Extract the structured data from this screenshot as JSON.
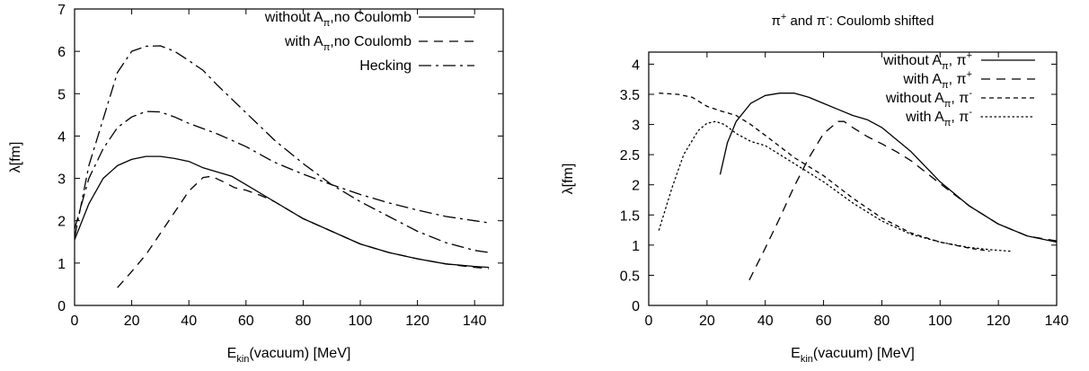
{
  "chart_data": [
    {
      "type": "line",
      "title": "",
      "xlabel": "E_kin(vacuum) [MeV]",
      "xlabel_parts": {
        "base": "E",
        "sub": "kin",
        "rest": "(vacuum) [MeV]"
      },
      "ylabel": "λ[fm]",
      "xlim": [
        0,
        150
      ],
      "ylim": [
        0,
        7
      ],
      "xticks": [
        0,
        20,
        40,
        60,
        80,
        100,
        120,
        140
      ],
      "yticks": [
        0,
        1,
        2,
        3,
        4,
        5,
        6,
        7
      ],
      "grid": false,
      "legend_position": "top-right",
      "series": [
        {
          "name": "without A_π,no Coulomb",
          "legend": {
            "pre": "without A",
            "sub": "π",
            "sup": "",
            "post": ",no Coulomb"
          },
          "style": "solid",
          "points": [
            [
              0,
              1.55
            ],
            [
              5,
              2.4
            ],
            [
              10,
              3.0
            ],
            [
              15,
              3.3
            ],
            [
              20,
              3.45
            ],
            [
              25,
              3.52
            ],
            [
              30,
              3.52
            ],
            [
              35,
              3.47
            ],
            [
              40,
              3.4
            ],
            [
              45,
              3.25
            ],
            [
              50,
              3.15
            ],
            [
              55,
              3.05
            ],
            [
              60,
              2.85
            ],
            [
              70,
              2.45
            ],
            [
              80,
              2.05
            ],
            [
              90,
              1.75
            ],
            [
              100,
              1.45
            ],
            [
              110,
              1.25
            ],
            [
              120,
              1.1
            ],
            [
              130,
              0.98
            ],
            [
              140,
              0.92
            ],
            [
              145,
              0.9
            ]
          ]
        },
        {
          "name": "with A_π,no Coulomb",
          "legend": {
            "pre": "with A",
            "sub": "π",
            "sup": "",
            "post": ",no Coulomb"
          },
          "style": "dashed",
          "points": [
            [
              15,
              0.42
            ],
            [
              20,
              0.8
            ],
            [
              25,
              1.2
            ],
            [
              30,
              1.7
            ],
            [
              35,
              2.2
            ],
            [
              40,
              2.7
            ],
            [
              45,
              3.02
            ],
            [
              48,
              3.05
            ],
            [
              52,
              2.92
            ],
            [
              56,
              2.78
            ],
            [
              60,
              2.72
            ],
            [
              65,
              2.6
            ],
            [
              70,
              2.45
            ],
            [
              80,
              2.05
            ],
            [
              90,
              1.75
            ],
            [
              100,
              1.45
            ],
            [
              110,
              1.25
            ],
            [
              120,
              1.1
            ],
            [
              130,
              0.98
            ],
            [
              140,
              0.9
            ],
            [
              145,
              0.87
            ]
          ]
        },
        {
          "name": "Hecking",
          "legend": {
            "pre": "Hecking",
            "sub": "",
            "sup": "",
            "post": ""
          },
          "style": "dashdot",
          "points": [
            [
              0,
              1.6
            ],
            [
              5,
              3.3
            ],
            [
              10,
              4.4
            ],
            [
              15,
              5.5
            ],
            [
              20,
              6.0
            ],
            [
              25,
              6.12
            ],
            [
              30,
              6.13
            ],
            [
              35,
              6.0
            ],
            [
              40,
              5.78
            ],
            [
              45,
              5.55
            ],
            [
              50,
              5.2
            ],
            [
              60,
              4.55
            ],
            [
              70,
              3.9
            ],
            [
              80,
              3.35
            ],
            [
              90,
              2.85
            ],
            [
              100,
              2.45
            ],
            [
              110,
              2.1
            ],
            [
              120,
              1.75
            ],
            [
              130,
              1.48
            ],
            [
              140,
              1.3
            ],
            [
              145,
              1.25
            ]
          ]
        },
        {
          "name": "",
          "legend": null,
          "style": "dashdot",
          "points": [
            [
              0,
              1.8
            ],
            [
              5,
              3.0
            ],
            [
              10,
              3.7
            ],
            [
              15,
              4.2
            ],
            [
              20,
              4.45
            ],
            [
              25,
              4.58
            ],
            [
              30,
              4.57
            ],
            [
              35,
              4.45
            ],
            [
              40,
              4.3
            ],
            [
              50,
              4.05
            ],
            [
              60,
              3.75
            ],
            [
              70,
              3.38
            ],
            [
              80,
              3.1
            ],
            [
              90,
              2.85
            ],
            [
              100,
              2.62
            ],
            [
              110,
              2.42
            ],
            [
              120,
              2.25
            ],
            [
              130,
              2.1
            ],
            [
              140,
              2.0
            ],
            [
              145,
              1.95
            ]
          ]
        }
      ]
    },
    {
      "type": "line",
      "title": "π+ and π-: Coulomb shifted",
      "title_parts": {
        "a": "π",
        "a_sup": "+",
        "mid": " and ",
        "b": "π",
        "b_sup": "-",
        "rest": ": Coulomb shifted"
      },
      "xlabel": "E_kin(vacuum) [MeV]",
      "xlabel_parts": {
        "base": "E",
        "sub": "kin",
        "rest": "(vacuum) [MeV]"
      },
      "ylabel": "λ[fm]",
      "xlim": [
        0,
        140
      ],
      "ylim": [
        0,
        4.2
      ],
      "xticks": [
        0,
        20,
        40,
        60,
        80,
        100,
        120,
        140
      ],
      "yticks": [
        0,
        0.5,
        1,
        1.5,
        2,
        2.5,
        3,
        3.5,
        4
      ],
      "grid": false,
      "legend_position": "top-right",
      "series": [
        {
          "name": "without A_π, π+",
          "legend": {
            "pre": "without A",
            "sub": "π",
            "sup": "",
            "post": ", π",
            "post_sup": "+"
          },
          "style": "solid",
          "points": [
            [
              24.5,
              2.17
            ],
            [
              27,
              2.7
            ],
            [
              30,
              3.05
            ],
            [
              35,
              3.35
            ],
            [
              40,
              3.48
            ],
            [
              45,
              3.52
            ],
            [
              50,
              3.52
            ],
            [
              55,
              3.45
            ],
            [
              60,
              3.35
            ],
            [
              65,
              3.25
            ],
            [
              70,
              3.15
            ],
            [
              75,
              3.08
            ],
            [
              80,
              2.95
            ],
            [
              90,
              2.55
            ],
            [
              100,
              2.05
            ],
            [
              110,
              1.65
            ],
            [
              120,
              1.35
            ],
            [
              130,
              1.15
            ],
            [
              140,
              1.05
            ]
          ]
        },
        {
          "name": "with A_π, π+",
          "legend": {
            "pre": "with A",
            "sub": "π",
            "sup": "",
            "post": ", π",
            "post_sup": "+"
          },
          "style": "dashed",
          "points": [
            [
              34.5,
              0.42
            ],
            [
              40,
              0.95
            ],
            [
              45,
              1.45
            ],
            [
              50,
              1.98
            ],
            [
              55,
              2.45
            ],
            [
              60,
              2.85
            ],
            [
              65,
              3.05
            ],
            [
              67,
              3.05
            ],
            [
              70,
              2.95
            ],
            [
              75,
              2.8
            ],
            [
              80,
              2.68
            ],
            [
              85,
              2.55
            ],
            [
              90,
              2.4
            ],
            [
              100,
              2.02
            ],
            [
              110,
              1.65
            ],
            [
              120,
              1.35
            ],
            [
              130,
              1.15
            ],
            [
              140,
              1.07
            ]
          ]
        },
        {
          "name": "without A_π, π-",
          "legend": {
            "pre": "without A",
            "sub": "π",
            "sup": "",
            "post": ", π",
            "post_sup": "-"
          },
          "style": "shortdash",
          "points": [
            [
              3.5,
              3.52
            ],
            [
              10,
              3.5
            ],
            [
              15,
              3.45
            ],
            [
              20,
              3.3
            ],
            [
              25,
              3.22
            ],
            [
              30,
              3.15
            ],
            [
              35,
              3.0
            ],
            [
              40,
              2.82
            ],
            [
              50,
              2.45
            ],
            [
              60,
              2.15
            ],
            [
              70,
              1.78
            ],
            [
              80,
              1.45
            ],
            [
              90,
              1.2
            ],
            [
              100,
              1.05
            ],
            [
              110,
              0.95
            ],
            [
              117,
              0.9
            ]
          ]
        },
        {
          "name": "with A_π, π-",
          "legend": {
            "pre": "with A",
            "sub": "π",
            "sup": "",
            "post": ", π",
            "post_sup": "-"
          },
          "style": "dotted",
          "points": [
            [
              3.5,
              1.25
            ],
            [
              8,
              1.95
            ],
            [
              12,
              2.5
            ],
            [
              17,
              2.9
            ],
            [
              20,
              3.02
            ],
            [
              23,
              3.05
            ],
            [
              26,
              3.0
            ],
            [
              30,
              2.85
            ],
            [
              35,
              2.72
            ],
            [
              40,
              2.65
            ],
            [
              45,
              2.5
            ],
            [
              50,
              2.35
            ],
            [
              60,
              2.05
            ],
            [
              70,
              1.7
            ],
            [
              80,
              1.4
            ],
            [
              90,
              1.18
            ],
            [
              100,
              1.05
            ],
            [
              110,
              0.96
            ],
            [
              118,
              0.92
            ],
            [
              124,
              0.9
            ]
          ]
        }
      ]
    }
  ]
}
